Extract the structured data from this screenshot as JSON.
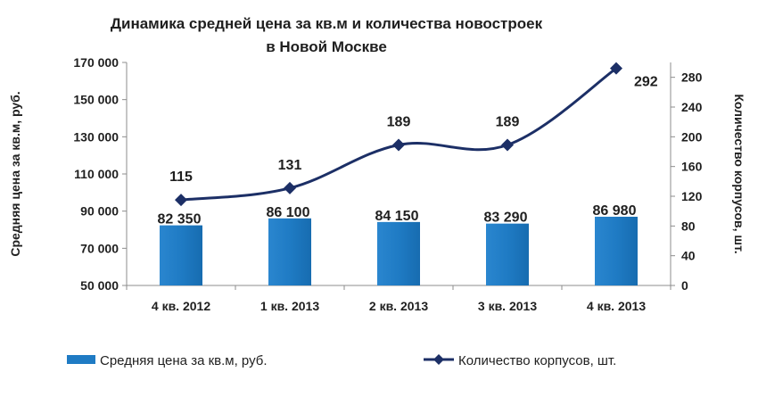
{
  "chart_data": {
    "type": "bar",
    "title_line1": "Динамика средней цена за кв.м и количества новостроек",
    "title_line2": "в Новой Москве",
    "categories": [
      "4 кв. 2012",
      "1 кв. 2013",
      "2 кв. 2013",
      "3 кв. 2013",
      "4 кв. 2013"
    ],
    "series": [
      {
        "name": "Средняя цена за кв.м, руб.",
        "type": "bar",
        "axis": "left",
        "values": [
          82350,
          86100,
          84150,
          83290,
          86980
        ],
        "labels": [
          "82 350",
          "86 100",
          "84 150",
          "83 290",
          "86 980"
        ],
        "color": "#1f7bc4"
      },
      {
        "name": "Количество корпусов, шт.",
        "type": "line",
        "axis": "right",
        "values": [
          115,
          131,
          189,
          189,
          292
        ],
        "labels": [
          "115",
          "131",
          "189",
          "189",
          "292"
        ],
        "color": "#1c2f66",
        "marker": "diamond"
      }
    ],
    "y_left": {
      "label": "Средняя цена  за кв.м, руб.",
      "ylim": [
        50000,
        170000
      ],
      "ticks": [
        50000,
        70000,
        90000,
        110000,
        130000,
        150000,
        170000
      ],
      "tick_labels": [
        "50 000",
        "70 000",
        "90 000",
        "110 000",
        "130 000",
        "150 000",
        "170 000"
      ]
    },
    "y_right": {
      "label": "Количество корпусов, шт.",
      "ylim": [
        0,
        300
      ],
      "ticks": [
        0,
        40,
        80,
        120,
        160,
        200,
        240,
        280
      ],
      "tick_labels": [
        "0",
        "40",
        "80",
        "120",
        "160",
        "200",
        "240",
        "280"
      ]
    },
    "grid": false,
    "legend_position": "bottom"
  }
}
